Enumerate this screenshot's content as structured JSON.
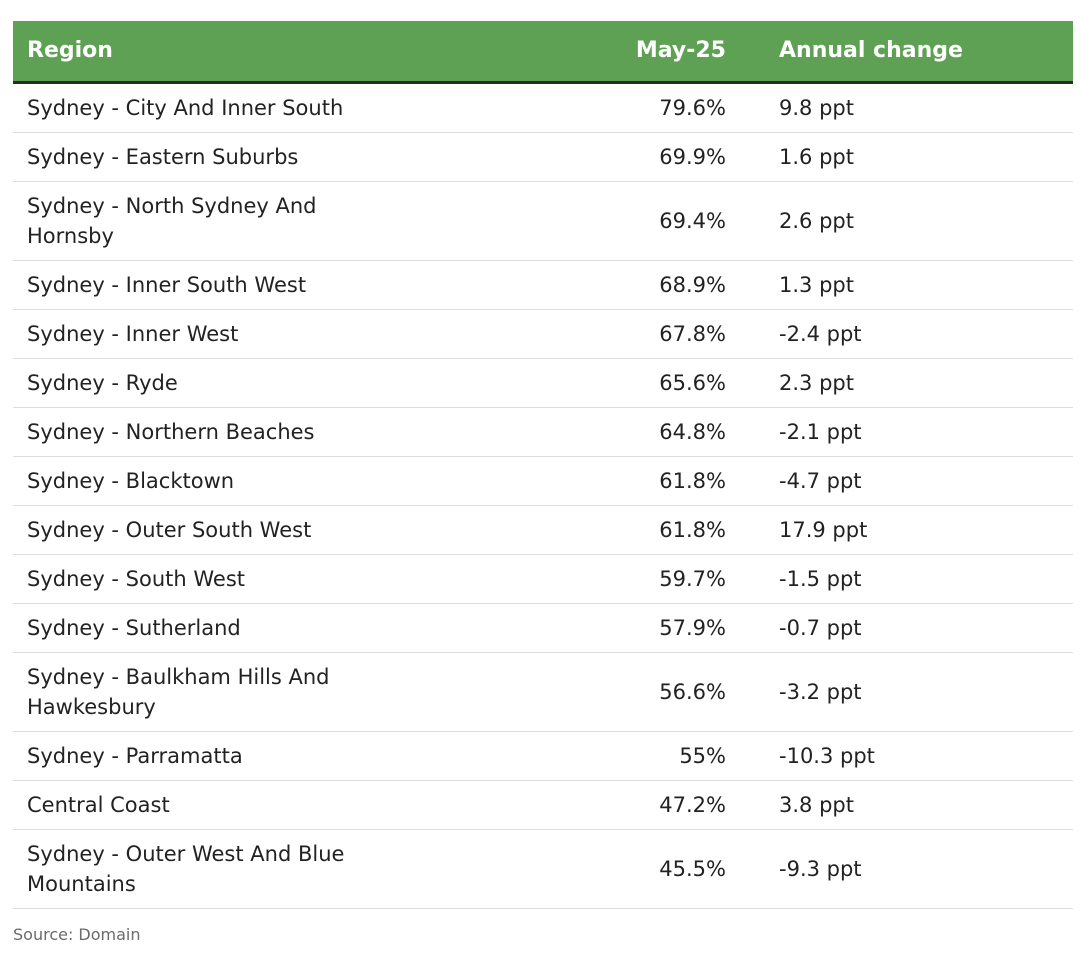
{
  "chart_data": {
    "type": "table",
    "columns": [
      "Region",
      "May-25",
      "Annual change"
    ],
    "rows": [
      {
        "region": "Sydney - City And Inner South",
        "value": "79.6%",
        "change": "9.8 ppt"
      },
      {
        "region": "Sydney - Eastern Suburbs",
        "value": "69.9%",
        "change": "1.6 ppt"
      },
      {
        "region": "Sydney - North Sydney And Hornsby",
        "value": "69.4%",
        "change": "2.6 ppt"
      },
      {
        "region": "Sydney - Inner South West",
        "value": "68.9%",
        "change": "1.3 ppt"
      },
      {
        "region": "Sydney - Inner West",
        "value": "67.8%",
        "change": "-2.4 ppt"
      },
      {
        "region": "Sydney - Ryde",
        "value": "65.6%",
        "change": "2.3 ppt"
      },
      {
        "region": "Sydney - Northern Beaches",
        "value": "64.8%",
        "change": "-2.1 ppt"
      },
      {
        "region": "Sydney - Blacktown",
        "value": "61.8%",
        "change": "-4.7 ppt"
      },
      {
        "region": "Sydney - Outer South West",
        "value": "61.8%",
        "change": "17.9 ppt"
      },
      {
        "region": "Sydney - South West",
        "value": "59.7%",
        "change": "-1.5 ppt"
      },
      {
        "region": "Sydney - Sutherland",
        "value": "57.9%",
        "change": "-0.7 ppt"
      },
      {
        "region": "Sydney - Baulkham Hills And Hawkesbury",
        "value": "56.6%",
        "change": "-3.2 ppt"
      },
      {
        "region": "Sydney - Parramatta",
        "value": "55%",
        "change": "-10.3 ppt"
      },
      {
        "region": "Central Coast",
        "value": "47.2%",
        "change": "3.8 ppt"
      },
      {
        "region": "Sydney - Outer West And Blue Mountains",
        "value": "45.5%",
        "change": "-9.3 ppt"
      }
    ],
    "source": "Source: Domain"
  },
  "colors": {
    "header_bg": "#5fa154",
    "header_text": "#ffffff",
    "row_divider": "#dddddd",
    "source_text": "#6a6a6a"
  }
}
